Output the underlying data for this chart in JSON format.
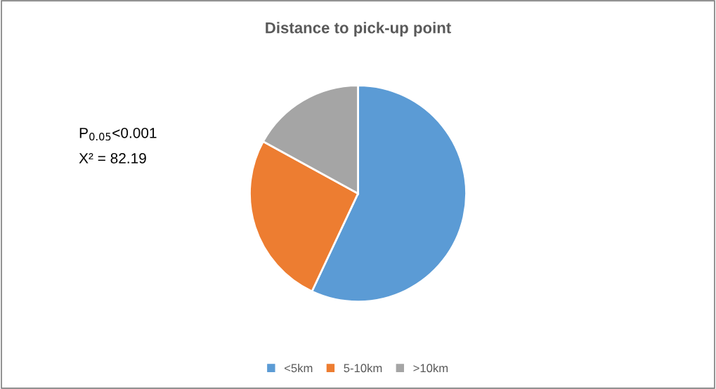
{
  "chart_data": {
    "type": "pie",
    "title": "Distance to pick-up point",
    "categories": [
      "<5km",
      "5-10km",
      ">10km"
    ],
    "values": [
      57,
      26,
      17
    ],
    "colors": [
      "#5b9bd5",
      "#ed7d31",
      "#a5a5a5"
    ],
    "legend": "bottom",
    "annotations": [
      "P$_{0.05}$<0.001",
      "X² = 82.19"
    ]
  }
}
